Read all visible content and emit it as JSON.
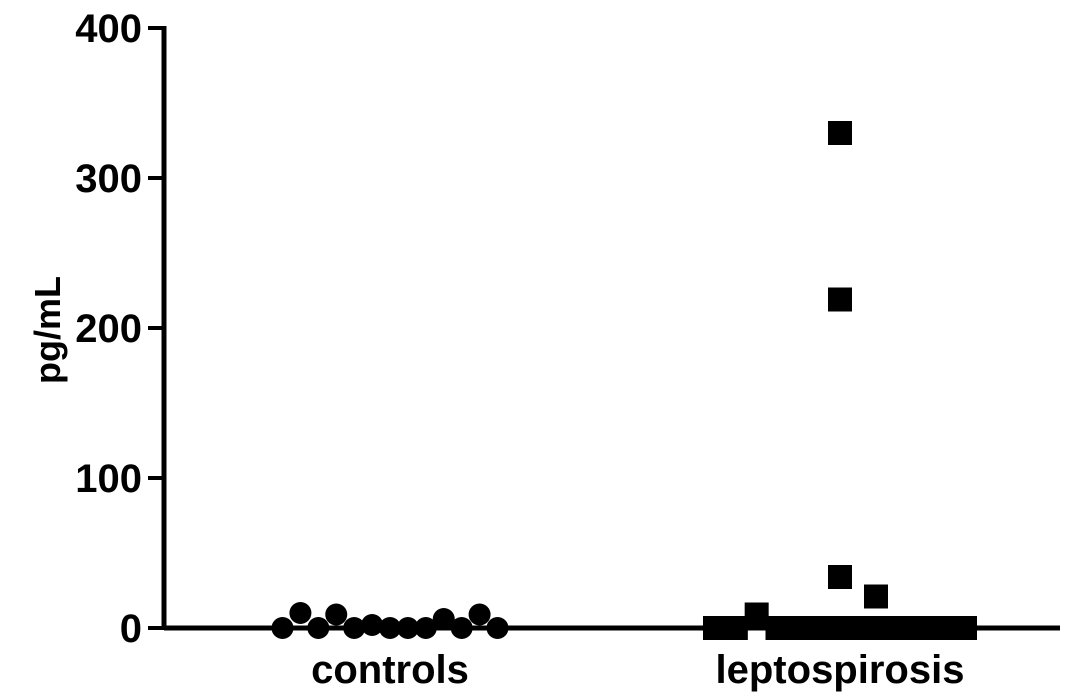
{
  "chart_data": {
    "type": "scatter",
    "ylabel": "pg/mL",
    "xlabel": "",
    "title": "",
    "ylim": [
      0,
      400
    ],
    "yticks": [
      0,
      100,
      200,
      300,
      400
    ],
    "categories": [
      "controls",
      "leptospirosis"
    ],
    "series": [
      {
        "category": "controls",
        "marker": "circle",
        "values": [
          0,
          10,
          0,
          9,
          0,
          2,
          0,
          0,
          0,
          6,
          0,
          9,
          0
        ]
      },
      {
        "category": "leptospirosis",
        "marker": "square",
        "values": [
          0,
          0,
          9,
          0,
          0,
          0,
          0,
          0,
          330,
          219,
          34,
          0,
          0,
          21,
          0,
          0,
          0
        ]
      }
    ],
    "grid": false,
    "legend": "none"
  }
}
